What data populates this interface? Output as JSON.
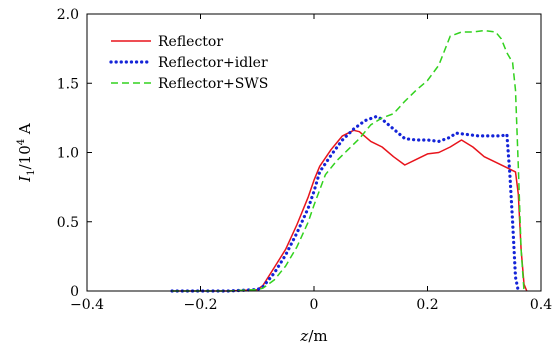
{
  "chart_data": {
    "type": "line",
    "xlabel": "z/m",
    "ylabel": "I1/10⁴ A",
    "xlim": [
      -0.4,
      0.4
    ],
    "ylim": [
      0,
      2.0
    ],
    "x_ticks": [
      -0.4,
      -0.2,
      0,
      0.2,
      0.4
    ],
    "x_tick_labels": [
      "−0.4",
      "−0.2",
      "0",
      "0.2",
      "0.4"
    ],
    "y_ticks": [
      0,
      0.5,
      1.0,
      1.5,
      2.0
    ],
    "y_tick_labels": [
      "0",
      "0.5",
      "1.0",
      "1.5",
      "2.0"
    ],
    "grid": false,
    "legend_position": "top-left",
    "series": [
      {
        "name": "Reflector",
        "color": "#e8141c",
        "style": "solid",
        "x": [
          -0.25,
          -0.2,
          -0.15,
          -0.1,
          -0.09,
          -0.07,
          -0.05,
          -0.03,
          -0.01,
          0.0,
          0.01,
          0.03,
          0.05,
          0.07,
          0.08,
          0.1,
          0.12,
          0.14,
          0.16,
          0.18,
          0.2,
          0.22,
          0.24,
          0.26,
          0.28,
          0.3,
          0.32,
          0.34,
          0.355,
          0.36,
          0.365,
          0.37,
          0.375
        ],
        "y": [
          0,
          0,
          0,
          0.01,
          0.04,
          0.17,
          0.3,
          0.48,
          0.68,
          0.8,
          0.9,
          1.02,
          1.12,
          1.16,
          1.15,
          1.08,
          1.04,
          0.97,
          0.91,
          0.95,
          0.99,
          1.0,
          1.04,
          1.09,
          1.04,
          0.97,
          0.93,
          0.89,
          0.86,
          0.7,
          0.3,
          0.05,
          0
        ]
      },
      {
        "name": "Reflector+idler",
        "color": "#1424d8",
        "style": "dotted",
        "x": [
          -0.25,
          -0.2,
          -0.15,
          -0.1,
          -0.09,
          -0.07,
          -0.05,
          -0.03,
          -0.01,
          0.0,
          0.01,
          0.03,
          0.05,
          0.07,
          0.09,
          0.11,
          0.12,
          0.14,
          0.16,
          0.18,
          0.2,
          0.22,
          0.24,
          0.25,
          0.27,
          0.29,
          0.31,
          0.33,
          0.34,
          0.345,
          0.35,
          0.355,
          0.36
        ],
        "y": [
          0,
          0,
          0,
          0.01,
          0.03,
          0.13,
          0.26,
          0.42,
          0.6,
          0.72,
          0.86,
          0.98,
          1.09,
          1.17,
          1.23,
          1.26,
          1.24,
          1.17,
          1.1,
          1.09,
          1.09,
          1.08,
          1.11,
          1.14,
          1.13,
          1.12,
          1.12,
          1.12,
          1.13,
          0.85,
          0.5,
          0.1,
          0
        ]
      },
      {
        "name": "Reflector+SWS",
        "color": "#32d21e",
        "style": "dashed",
        "x": [
          -0.25,
          -0.2,
          -0.15,
          -0.1,
          -0.09,
          -0.07,
          -0.05,
          -0.03,
          -0.01,
          0.0,
          0.02,
          0.04,
          0.06,
          0.08,
          0.1,
          0.12,
          0.14,
          0.16,
          0.18,
          0.2,
          0.22,
          0.24,
          0.26,
          0.28,
          0.3,
          0.32,
          0.33,
          0.34,
          0.35,
          0.355,
          0.36,
          0.365,
          0.37
        ],
        "y": [
          0,
          0,
          0,
          0.01,
          0.02,
          0.08,
          0.18,
          0.32,
          0.5,
          0.62,
          0.84,
          0.94,
          1.02,
          1.1,
          1.2,
          1.25,
          1.28,
          1.37,
          1.45,
          1.52,
          1.63,
          1.84,
          1.87,
          1.87,
          1.88,
          1.87,
          1.82,
          1.72,
          1.65,
          1.45,
          0.9,
          0.3,
          0
        ]
      }
    ]
  }
}
